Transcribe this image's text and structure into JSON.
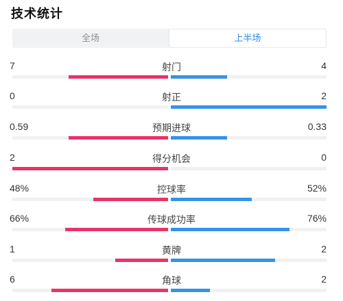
{
  "header": {
    "title": "技术统计"
  },
  "tabs": [
    {
      "label": "全场",
      "active": false
    },
    {
      "label": "上半场",
      "active": true
    }
  ],
  "colors": {
    "home": "#e8336a",
    "away": "#3593e6",
    "active_tab": "#2c86e5"
  },
  "stats": [
    {
      "label": "射门",
      "left": "7",
      "right": "4",
      "left_fraction": 0.64,
      "right_fraction": 0.36
    },
    {
      "label": "射正",
      "left": "0",
      "right": "2",
      "left_fraction": 0.0,
      "right_fraction": 1.0
    },
    {
      "label": "预期进球",
      "left": "0.59",
      "right": "0.33",
      "left_fraction": 0.64,
      "right_fraction": 0.36
    },
    {
      "label": "得分机会",
      "left": "2",
      "right": "0",
      "left_fraction": 1.0,
      "right_fraction": 0.0
    },
    {
      "label": "控球率",
      "left": "48%",
      "right": "52%",
      "left_fraction": 0.48,
      "right_fraction": 0.52
    },
    {
      "label": "传球成功率",
      "left": "66%",
      "right": "76%",
      "left_fraction": 0.66,
      "right_fraction": 0.76
    },
    {
      "label": "黄牌",
      "left": "1",
      "right": "2",
      "left_fraction": 0.34,
      "right_fraction": 0.67
    },
    {
      "label": "角球",
      "left": "6",
      "right": "2",
      "left_fraction": 0.75,
      "right_fraction": 0.25
    }
  ]
}
